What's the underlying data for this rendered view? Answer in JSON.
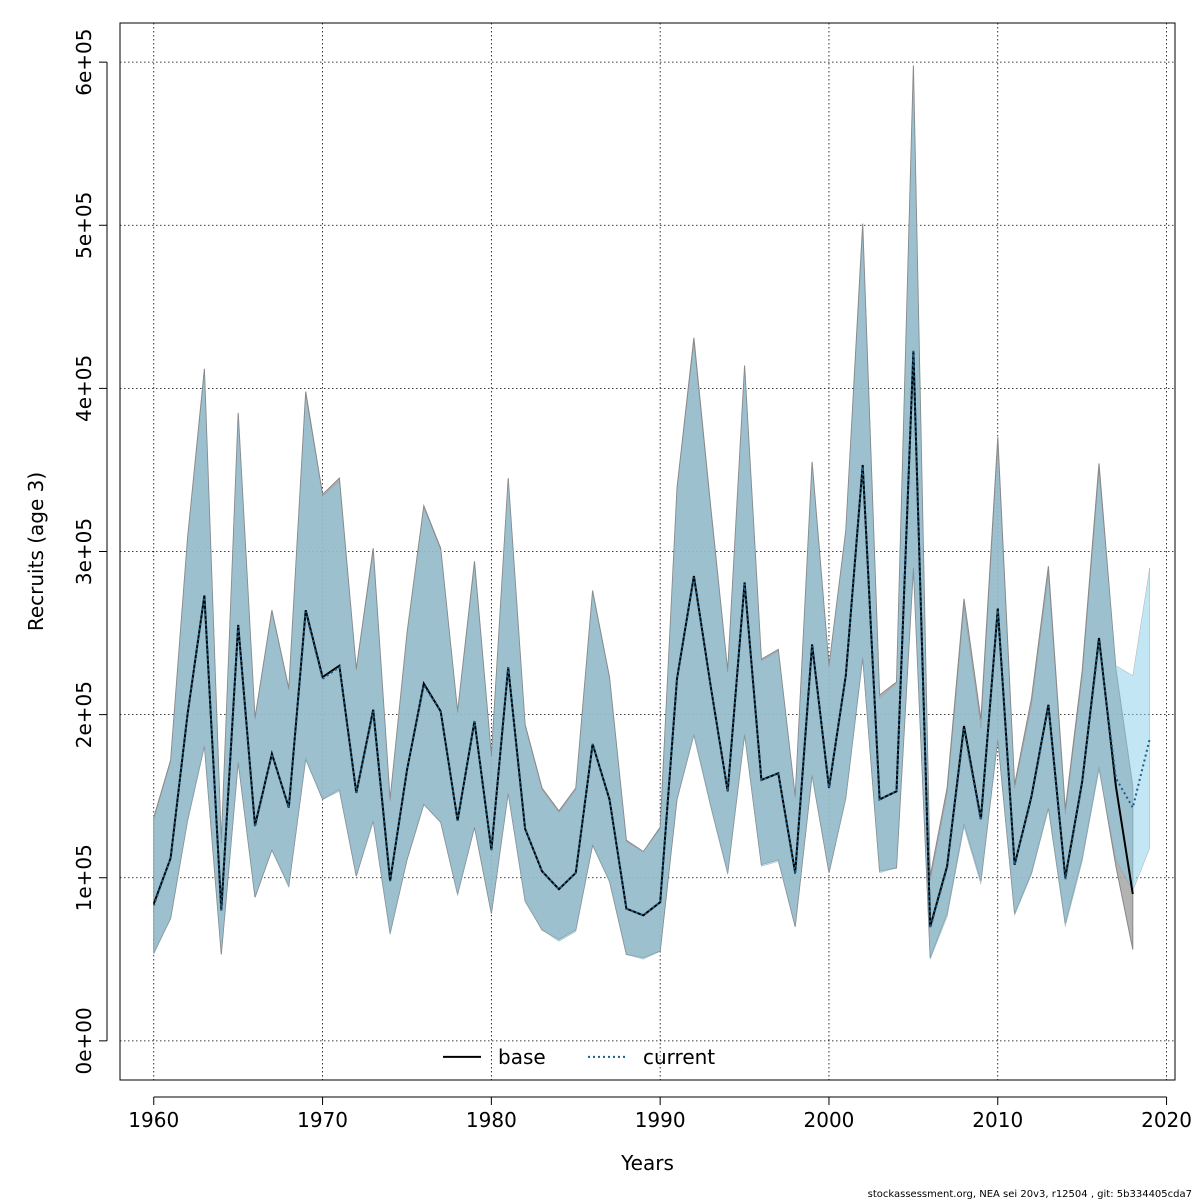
{
  "chart_data": {
    "type": "area",
    "xlabel": "Years",
    "ylabel": "Recruits (age 3)",
    "xlim": [
      1958,
      2020.5
    ],
    "ylim": [
      -24000,
      624000
    ],
    "x_ticks": [
      1960,
      1970,
      1980,
      1990,
      2000,
      2010,
      2020
    ],
    "x_tick_labels": [
      "1960",
      "1970",
      "1980",
      "1990",
      "2000",
      "2010",
      "2020"
    ],
    "y_ticks": [
      0,
      100000,
      200000,
      300000,
      400000,
      500000,
      600000
    ],
    "y_tick_labels": [
      "0e+00",
      "1e+05",
      "2e+05",
      "3e+05",
      "4e+05",
      "5e+05",
      "6e+05"
    ],
    "grid": true,
    "legend_position": "bottom-center",
    "legend": [
      {
        "label": "base",
        "style": "solid",
        "color": "#000000"
      },
      {
        "label": "current",
        "style": "dotted",
        "color": "#1a5f8a"
      }
    ],
    "footer": "stockassessment.org, NEA  sei  20v3, r12504 , git: 5b334405cda7",
    "colors": {
      "base_band": "#a6a6a6",
      "current_band": "#87ceeb",
      "overlap": "#a3c4d6",
      "band_edge": "#888888"
    },
    "series": [
      {
        "name": "base",
        "years": [
          1960,
          1961,
          1962,
          1963,
          1964,
          1965,
          1966,
          1967,
          1968,
          1969,
          1970,
          1971,
          1972,
          1973,
          1974,
          1975,
          1976,
          1977,
          1978,
          1979,
          1980,
          1981,
          1982,
          1983,
          1984,
          1985,
          1986,
          1987,
          1988,
          1989,
          1990,
          1991,
          1992,
          1993,
          1994,
          1995,
          1996,
          1997,
          1998,
          1999,
          2000,
          2001,
          2002,
          2003,
          2004,
          2005,
          2006,
          2007,
          2008,
          2009,
          2010,
          2011,
          2012,
          2013,
          2014,
          2015,
          2016,
          2017,
          2018
        ],
        "estimate": [
          84000,
          112000,
          200000,
          273000,
          80000,
          255000,
          132000,
          176000,
          143000,
          264000,
          223000,
          230000,
          152000,
          203000,
          98000,
          166000,
          219000,
          202000,
          135000,
          196000,
          117000,
          229000,
          130000,
          104000,
          93000,
          103000,
          182000,
          148000,
          81000,
          77000,
          85000,
          222000,
          285000,
          217000,
          153000,
          281000,
          160000,
          164000,
          103000,
          243000,
          155000,
          224000,
          353000,
          148000,
          153000,
          423000,
          70000,
          107000,
          193000,
          136000,
          265000,
          108000,
          150000,
          206000,
          100000,
          159000,
          247000,
          156000,
          90000
        ],
        "lower": [
          54000,
          75000,
          135000,
          181000,
          53000,
          171000,
          88000,
          117000,
          95000,
          173000,
          148000,
          154000,
          101000,
          135000,
          66000,
          111000,
          145000,
          134000,
          90000,
          131000,
          78000,
          152000,
          86000,
          68000,
          62000,
          68000,
          120000,
          98000,
          53000,
          51000,
          55000,
          148000,
          188000,
          144000,
          103000,
          188000,
          108000,
          111000,
          70000,
          163000,
          103000,
          149000,
          235000,
          104000,
          106000,
          290000,
          51000,
          78000,
          133000,
          98000,
          185000,
          78000,
          103000,
          143000,
          72000,
          112000,
          168000,
          107000,
          56000
        ],
        "upper": [
          137000,
          172000,
          308000,
          412000,
          122000,
          385000,
          198000,
          264000,
          216000,
          398000,
          335000,
          345000,
          228000,
          302000,
          148000,
          250000,
          328000,
          302000,
          202000,
          294000,
          175000,
          345000,
          194000,
          155000,
          141000,
          155000,
          276000,
          223000,
          123000,
          116000,
          131000,
          339000,
          431000,
          327000,
          227000,
          414000,
          234000,
          240000,
          150000,
          355000,
          230000,
          313000,
          501000,
          212000,
          220000,
          598000,
          101000,
          155000,
          271000,
          197000,
          370000,
          157000,
          210000,
          291000,
          142000,
          227000,
          354000,
          228000,
          156000
        ]
      },
      {
        "name": "current",
        "years": [
          1960,
          1961,
          1962,
          1963,
          1964,
          1965,
          1966,
          1967,
          1968,
          1969,
          1970,
          1971,
          1972,
          1973,
          1974,
          1975,
          1976,
          1977,
          1978,
          1979,
          1980,
          1981,
          1982,
          1983,
          1984,
          1985,
          1986,
          1987,
          1988,
          1989,
          1990,
          1991,
          1992,
          1993,
          1994,
          1995,
          1996,
          1997,
          1998,
          1999,
          2000,
          2001,
          2002,
          2003,
          2004,
          2005,
          2006,
          2007,
          2008,
          2009,
          2010,
          2011,
          2012,
          2013,
          2014,
          2015,
          2016,
          2017,
          2018,
          2019
        ],
        "estimate": [
          83000,
          112000,
          200000,
          272000,
          80000,
          254000,
          131000,
          176000,
          143000,
          263000,
          222000,
          229000,
          152000,
          202000,
          98000,
          166000,
          218000,
          202000,
          135000,
          196000,
          117000,
          229000,
          130000,
          104000,
          93000,
          103000,
          182000,
          148000,
          81000,
          77000,
          85000,
          222000,
          284000,
          217000,
          153000,
          280000,
          160000,
          164000,
          102000,
          242000,
          155000,
          224000,
          352000,
          148000,
          153000,
          423000,
          69000,
          106000,
          191000,
          135000,
          264000,
          108000,
          149000,
          205000,
          99000,
          158000,
          245000,
          161000,
          143000,
          185000
        ],
        "lower": [
          53000,
          75000,
          134000,
          180000,
          53000,
          170000,
          88000,
          117000,
          94000,
          172000,
          148000,
          153000,
          101000,
          134000,
          65000,
          111000,
          145000,
          134000,
          89000,
          131000,
          78000,
          151000,
          85000,
          68000,
          61000,
          67000,
          120000,
          97000,
          53000,
          50000,
          55000,
          148000,
          187000,
          143000,
          102000,
          187000,
          107000,
          110000,
          70000,
          162000,
          103000,
          148000,
          234000,
          103000,
          106000,
          290000,
          50000,
          76000,
          131000,
          96000,
          184000,
          77000,
          102000,
          142000,
          70000,
          110000,
          166000,
          111000,
          92000,
          118000
        ],
        "upper": [
          136000,
          171000,
          307000,
          410000,
          121000,
          383000,
          197000,
          263000,
          215000,
          396000,
          334000,
          343000,
          227000,
          300000,
          147000,
          249000,
          327000,
          301000,
          201000,
          292000,
          174000,
          344000,
          193000,
          154000,
          140000,
          154000,
          275000,
          222000,
          122000,
          116000,
          130000,
          338000,
          428000,
          325000,
          226000,
          412000,
          233000,
          239000,
          149000,
          353000,
          229000,
          312000,
          497000,
          210000,
          219000,
          595000,
          98000,
          151000,
          266000,
          192000,
          365000,
          155000,
          206000,
          286000,
          139000,
          223000,
          349000,
          230000,
          224000,
          290000
        ]
      }
    ]
  }
}
